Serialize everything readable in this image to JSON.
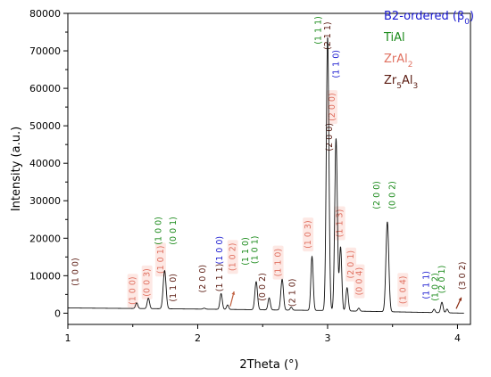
{
  "chart_data": {
    "type": "line",
    "xlabel": "2Theta (°)",
    "ylabel": "Intensity (a.u.)",
    "xlim": [
      1,
      4.1
    ],
    "ylim": [
      -3000,
      80000
    ],
    "xticks": [
      1,
      2,
      3,
      4
    ],
    "yticks": [
      0,
      10000,
      20000,
      30000,
      40000,
      50000,
      60000,
      70000,
      80000
    ],
    "grid": false,
    "baseline": [
      [
        1.0,
        1400
      ],
      [
        2.0,
        1100
      ],
      [
        3.0,
        700
      ],
      [
        4.05,
        0
      ]
    ],
    "peaks": [
      {
        "x": 1.53,
        "y": 1500,
        "w": 0.009
      },
      {
        "x": 1.62,
        "y": 2800,
        "w": 0.009
      },
      {
        "x": 1.745,
        "y": 10200,
        "w": 0.011
      },
      {
        "x": 2.05,
        "y": 250,
        "w": 0.009
      },
      {
        "x": 2.18,
        "y": 4200,
        "w": 0.009
      },
      {
        "x": 2.23,
        "y": 1200,
        "w": 0.008
      },
      {
        "x": 2.45,
        "y": 7500,
        "w": 0.01
      },
      {
        "x": 2.55,
        "y": 3200,
        "w": 0.009
      },
      {
        "x": 2.65,
        "y": 8200,
        "w": 0.01
      },
      {
        "x": 2.72,
        "y": 800,
        "w": 0.008
      },
      {
        "x": 2.88,
        "y": 14400,
        "w": 0.009
      },
      {
        "x": 3.0,
        "y": 73000,
        "w": 0.01
      },
      {
        "x": 3.065,
        "y": 46000,
        "w": 0.01
      },
      {
        "x": 3.1,
        "y": 17000,
        "w": 0.009
      },
      {
        "x": 3.15,
        "y": 6200,
        "w": 0.009
      },
      {
        "x": 3.24,
        "y": 800,
        "w": 0.008
      },
      {
        "x": 3.46,
        "y": 24000,
        "w": 0.011
      },
      {
        "x": 3.82,
        "y": 900,
        "w": 0.008
      },
      {
        "x": 3.88,
        "y": 2800,
        "w": 0.009
      },
      {
        "x": 3.92,
        "y": 1000,
        "w": 0.008
      }
    ],
    "legend": {
      "position": "top-right",
      "entries": [
        {
          "label": "B2-ordered (β",
          "sub": "0",
          "suffix": ")",
          "color": "#1a1ad0"
        },
        {
          "label": "TiAl",
          "sub": "",
          "suffix": "",
          "color": "#1a8a1a"
        },
        {
          "label": "ZrAl",
          "sub": "2",
          "suffix": "",
          "color": "#e07060"
        },
        {
          "label": "Zr",
          "sub": "5",
          "mid": "Al",
          "sub2": "3",
          "color": "#5a1a10"
        }
      ]
    },
    "peak_labels": [
      {
        "text": "(1 0 0)",
        "phase": "Zr5Al3",
        "x": 1.08,
        "y": 11000
      },
      {
        "text": "(1 0 0)",
        "phase": "ZrAl2",
        "x": 1.52,
        "y": 6000
      },
      {
        "text": "(0 0 3)",
        "phase": "ZrAl2",
        "x": 1.63,
        "y": 8200
      },
      {
        "text": "(1 0 1)",
        "phase": "ZrAl2",
        "x": 1.735,
        "y": 14300
      },
      {
        "text": "(1 0 0)",
        "phase": "TiAl",
        "x": 1.72,
        "y": 22000
      },
      {
        "text": "(0 0 1)",
        "phase": "TiAl",
        "x": 1.83,
        "y": 22000
      },
      {
        "text": "(1 1 0)",
        "phase": "Zr5Al3",
        "x": 1.83,
        "y": 6800
      },
      {
        "text": "(2 0 0)",
        "phase": "Zr5Al3",
        "x": 2.06,
        "y": 9200
      },
      {
        "text": "(1 0 0)",
        "phase": "B2",
        "x": 2.19,
        "y": 16800
      },
      {
        "text": "(1 1 1)",
        "phase": "Zr5Al3",
        "x": 2.19,
        "y": 9500
      },
      {
        "text": "(1 0 2)",
        "phase": "ZrAl2",
        "x": 2.29,
        "y": 15000
      },
      {
        "text": "(1 0 1)",
        "phase": "TiAl",
        "x": 2.46,
        "y": 16900
      },
      {
        "text": "(1 1 0)",
        "phase": "TiAl",
        "x": 2.39,
        "y": 16500
      },
      {
        "text": "(0 0 2)",
        "phase": "Zr5Al3",
        "x": 2.52,
        "y": 7000
      },
      {
        "text": "(1 1 0)",
        "phase": "ZrAl2",
        "x": 2.64,
        "y": 13500
      },
      {
        "text": "(2 1 0)",
        "phase": "Zr5Al3",
        "x": 2.75,
        "y": 5500
      },
      {
        "text": "(1 0 3)",
        "phase": "ZrAl2",
        "x": 2.87,
        "y": 21000
      },
      {
        "text": "(1 1 1)",
        "phase": "TiAl",
        "x": 2.95,
        "y": 75500
      },
      {
        "text": "(2 1 1)",
        "phase": "Zr5Al3",
        "x": 3.02,
        "y": 74000
      },
      {
        "text": "(1 1 0)",
        "phase": "B2",
        "x": 3.085,
        "y": 66500
      },
      {
        "text": "(2 0 0)",
        "phase": "ZrAl2",
        "x": 3.055,
        "y": 55000
      },
      {
        "text": "(2 0 0)",
        "phase": "Zr5Al3",
        "x": 3.035,
        "y": 47000
      },
      {
        "text": "(1 1 3)",
        "phase": "ZrAl2",
        "x": 3.115,
        "y": 24000
      },
      {
        "text": "(2 0 1)",
        "phase": "ZrAl2",
        "x": 3.2,
        "y": 13000
      },
      {
        "text": "(0 0 4)",
        "phase": "ZrAl2",
        "x": 3.265,
        "y": 8500
      },
      {
        "text": "(2 0 0)",
        "phase": "TiAl",
        "x": 3.4,
        "y": 31500
      },
      {
        "text": "(0 0 2)",
        "phase": "TiAl",
        "x": 3.52,
        "y": 31500
      },
      {
        "text": "(1 0 4)",
        "phase": "ZrAl2",
        "x": 3.6,
        "y": 6200
      },
      {
        "text": "(1 1 1)",
        "phase": "B2",
        "x": 3.78,
        "y": 7500
      },
      {
        "text": "(2 0 1)",
        "phase": "TiAl",
        "x": 3.9,
        "y": 9000
      },
      {
        "text": "(1 0 2)",
        "phase": "TiAl",
        "x": 3.85,
        "y": 7000
      },
      {
        "text": "(3 0 2)",
        "phase": "Zr5Al3",
        "x": 4.06,
        "y": 10000
      }
    ]
  },
  "colors": {
    "B2": "#1a1ad0",
    "TiAl": "#1a8a1a",
    "ZrAl2": "#e07060",
    "Zr5Al3": "#5a1a10",
    "label_bg": "#fde8e4"
  }
}
